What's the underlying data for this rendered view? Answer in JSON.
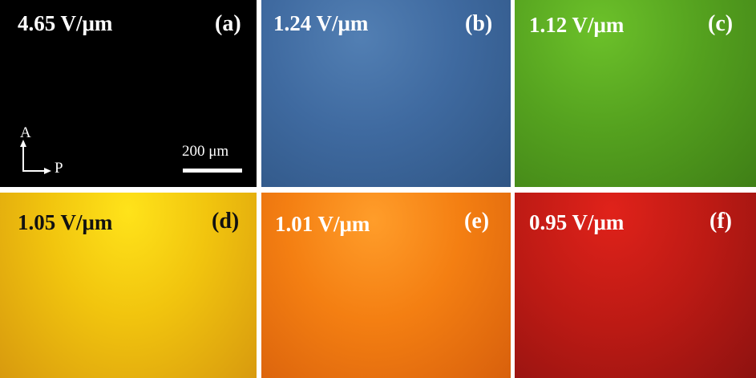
{
  "panels": [
    {
      "field": "4.65 V/μm",
      "label": "(a)",
      "color": "#000000"
    },
    {
      "field": "1.24 V/μm",
      "label": "(b)",
      "color": "#4672a6"
    },
    {
      "field": "1.12 V/μm",
      "label": "(c)",
      "color": "#55a21f"
    },
    {
      "field": "1.05 V/μm",
      "label": "(d)",
      "color": "#f1c40e"
    },
    {
      "field": "1.01 V/μm",
      "label": "(e)",
      "color": "#f47f12"
    },
    {
      "field": "0.95 V/μm",
      "label": "(f)",
      "color": "#bb1a14"
    }
  ],
  "axes": {
    "analyzer": "A",
    "polarizer": "P"
  },
  "scale_bar": {
    "label": "200 μm"
  }
}
